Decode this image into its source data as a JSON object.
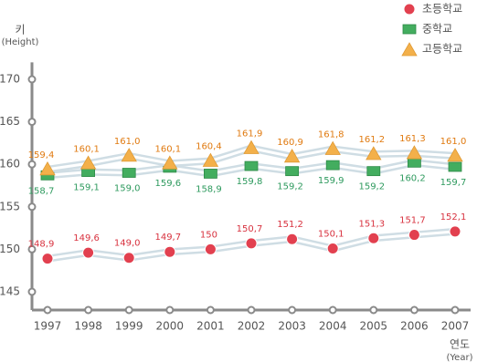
{
  "chart_data": {
    "type": "line",
    "y_label": [
      "키",
      "(Height)"
    ],
    "x_label": [
      "연도",
      "(Year)"
    ],
    "categories": [
      "1997",
      "1998",
      "1999",
      "2000",
      "2001",
      "2002",
      "2003",
      "2004",
      "2005",
      "2006",
      "2007"
    ],
    "series": [
      {
        "name": "초등학교",
        "color": "#e2404f",
        "label_color": "#d8323f",
        "marker": "circle",
        "label_side": "above",
        "values": [
          148.9,
          149.6,
          149.0,
          149.7,
          150,
          150.7,
          151.2,
          150.1,
          151.3,
          151.7,
          152.1
        ],
        "value_labels": [
          "148,9",
          "149,6",
          "149,0",
          "149,7",
          "150",
          "150,7",
          "151,2",
          "150,1",
          "151,3",
          "151,7",
          "152,1"
        ]
      },
      {
        "name": "중학교",
        "color": "#43ad5f",
        "label_color": "#2e9a5e",
        "marker": "rect",
        "label_side": "below",
        "values": [
          158.7,
          159.1,
          159.0,
          159.6,
          158.9,
          159.8,
          159.2,
          159.9,
          159.2,
          160.2,
          159.7
        ],
        "value_labels": [
          "158,7",
          "159,1",
          "159,0",
          "159,6",
          "158,9",
          "159,8",
          "159,2",
          "159,9",
          "159,2",
          "160,2",
          "159,7"
        ]
      },
      {
        "name": "고등학교",
        "color": "#f3b04a",
        "label_color": "#e07a10",
        "marker": "triangle",
        "label_side": "above",
        "values": [
          159.4,
          160.1,
          161.0,
          160.1,
          160.4,
          161.9,
          160.9,
          161.8,
          161.2,
          161.3,
          161.0
        ],
        "value_labels": [
          "159,4",
          "160,1",
          "161,0",
          "160,1",
          "160,4",
          "161,9",
          "160,9",
          "161,8",
          "161,2",
          "161,3",
          "161,0"
        ]
      }
    ],
    "ylim": [
      143,
      172
    ],
    "yticks": [
      145,
      150,
      155,
      160,
      165,
      170
    ],
    "grid": false
  }
}
